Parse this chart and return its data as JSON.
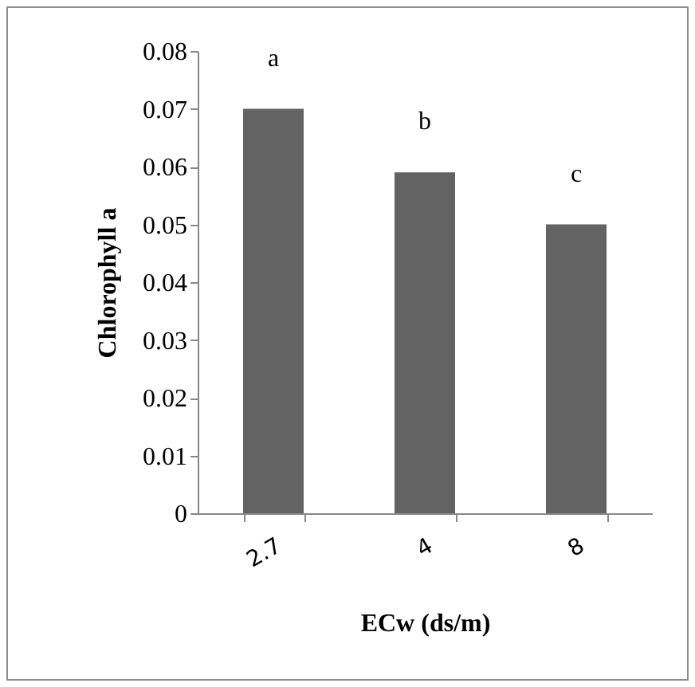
{
  "chart_data": {
    "type": "bar",
    "xlabel": "ECw (ds/m)",
    "ylabel": "Chlorophyll a",
    "categories": [
      "2.7",
      "4",
      "8"
    ],
    "values": [
      0.07,
      0.059,
      0.05
    ],
    "color": "#636363",
    "ylim": [
      0,
      0.08
    ],
    "yticks": [
      0,
      0.01,
      0.02,
      0.03,
      0.04,
      0.05,
      0.06,
      0.07,
      0.08
    ],
    "annotations": [
      "a",
      "b",
      "c"
    ]
  }
}
